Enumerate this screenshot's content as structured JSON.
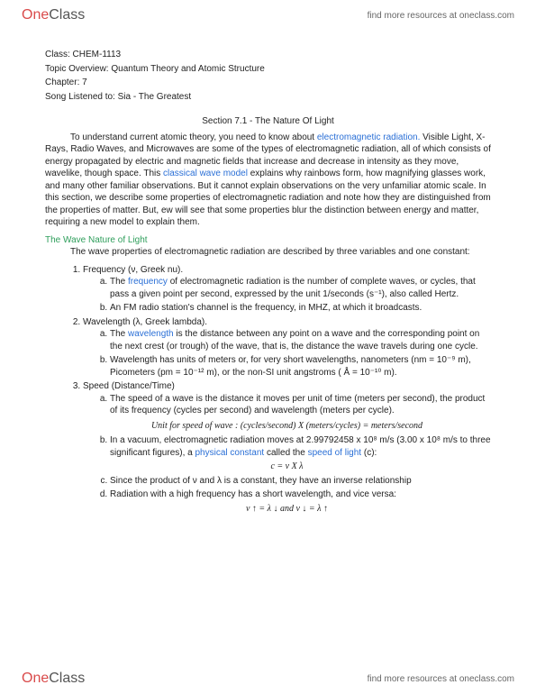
{
  "brand": {
    "part1": "One",
    "part2": "Class",
    "tagline": "find more resources at oneclass.com"
  },
  "meta": {
    "class": "Class: CHEM-1113",
    "topic": "Topic Overview: Quantum Theory and Atomic Structure",
    "chapter": "Chapter: 7",
    "song": "Song Listened to: Sia - The Greatest"
  },
  "section_title": "Section 7.1 - The Nature Of Light",
  "intro": {
    "pre1": "To understand current atomic theory, you need to know about ",
    "link1": "electromagnetic radiation.",
    "post1": " Visible Light, X-Rays, Radio Waves, and Microwaves are some of the types of electromagnetic radiation, all of which consists of energy propagated by electric and magnetic fields that increase and decrease in intensity as they move, wavelike, though space. This ",
    "link2": "classical wave model",
    "post2": " explains why rainbows form, how magnifying glasses work, and many other familiar observations. But it cannot explain observations on the very unfamiliar atomic scale. In this section, we describe some properties of electromagnetic radiation and note how they are distinguished from the properties of matter. But, ew will see that some properties blur the distinction between energy and matter, requiring a new model to explain them."
  },
  "subhead": "The Wave Nature of Light",
  "sub_intro": "The wave properties of electromagnetic radiation are described by three variables and one constant:",
  "items": {
    "i1": "Frequency (ν, Greek nu).",
    "i1a_pre": "The ",
    "i1a_link": "frequency",
    "i1a_post": " of electromagnetic radiation is the number of complete waves, or cycles, that pass a given point per second, expressed by the unit 1/seconds (s⁻¹), also called Hertz.",
    "i1b": "An FM radio station's channel is the frequency, in MHZ, at which it broadcasts.",
    "i2": "Wavelength (λ, Greek lambda).",
    "i2a_pre": "The ",
    "i2a_link": "wavelength",
    "i2a_post": " is the distance between any point on a wave and the corresponding point on the next crest (or trough) of the wave, that is, the distance the wave travels during one cycle.",
    "i2b": "Wavelength has units of meters or, for very short wavelengths, nanometers (nm = 10⁻⁹ m), Picometers (pm = 10⁻¹² m), or the non-SI unit angstroms ( Å = 10⁻¹⁰ m).",
    "i3": "Speed (Distance/Time)",
    "i3a": "The speed of a wave is the distance it moves per unit of time (meters per second), the product of its frequency (cycles per second) and wavelength (meters per cycle).",
    "i3b_pre": "In a vacuum, electromagnetic radiation moves at 2.99792458 x 10⁸ m/s (3.00 x 10⁸ m/s to three significant figures), a ",
    "i3b_link1": "physical constant",
    "i3b_mid": " called the ",
    "i3b_link2": "speed of light",
    "i3b_post": " (c):",
    "i3c": "Since the product of ν and λ is a constant, they have an inverse relationship",
    "i3d": "Radiation with a high frequency has a short wavelength, and vice versa:"
  },
  "formulas": {
    "f1": "Unit for speed of wave : (cycles/second) X (meters/cycles) = meters/second",
    "f2": "c = ν X λ",
    "f3": "ν ↑ = λ ↓  and  ν ↓ = λ ↑"
  },
  "colors": {
    "link_blue": "#2a6fd6",
    "link_green": "#2e9e5b",
    "logo_red": "#d94a4a",
    "text": "#222222",
    "bg": "#ffffff"
  }
}
